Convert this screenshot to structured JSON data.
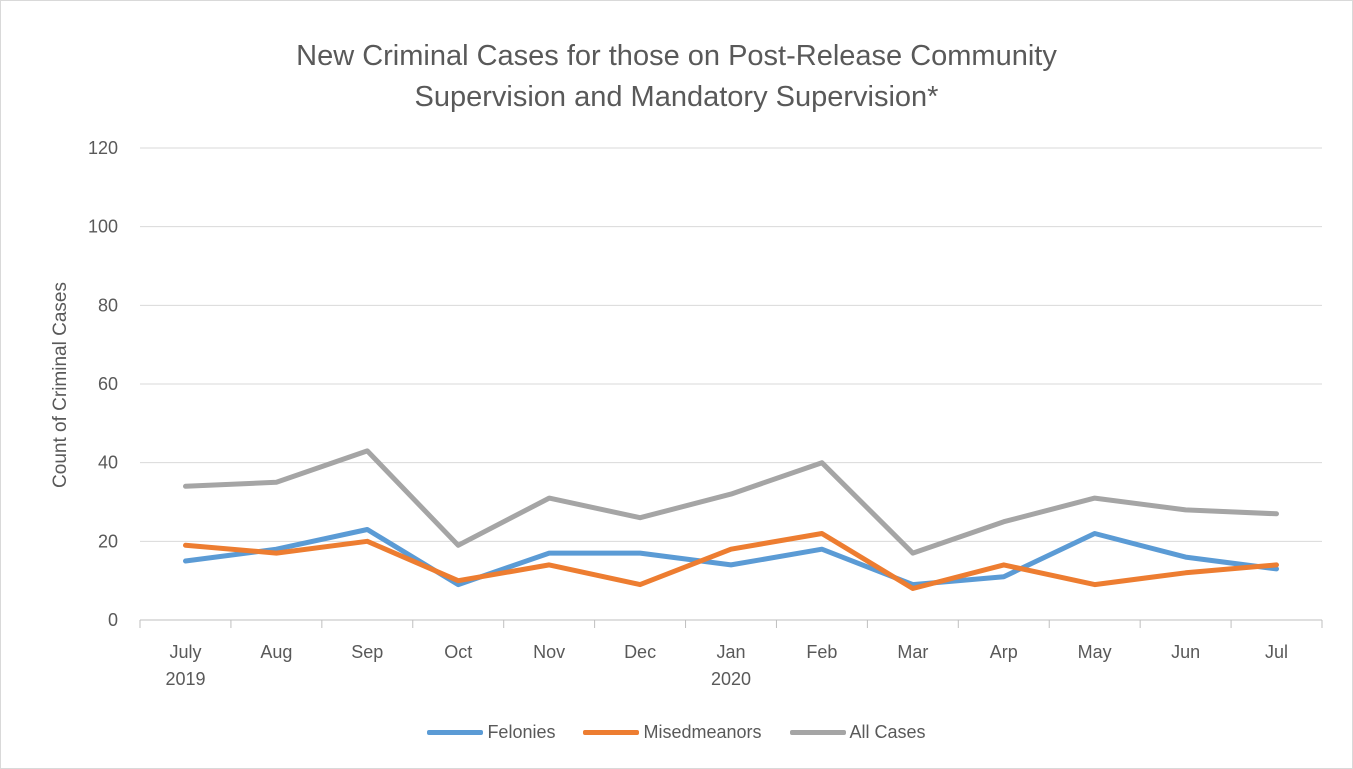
{
  "chart_data": {
    "type": "line",
    "title_lines": [
      "New Criminal Cases for those on Post-Release Community",
      "Supervision and Mandatory Supervision*"
    ],
    "xlabel": "",
    "ylabel": "Count of Criminal Cases",
    "ylim": [
      0,
      120
    ],
    "yticks": [
      0,
      20,
      40,
      60,
      80,
      100,
      120
    ],
    "grid": true,
    "legend_position": "bottom",
    "categories": [
      [
        "July",
        "2019"
      ],
      [
        "Aug"
      ],
      [
        "Sep"
      ],
      [
        "Oct"
      ],
      [
        "Nov"
      ],
      [
        "Dec"
      ],
      [
        "Jan",
        "2020"
      ],
      [
        "Feb"
      ],
      [
        "Mar"
      ],
      [
        "Arp"
      ],
      [
        "May"
      ],
      [
        "Jun"
      ],
      [
        "Jul"
      ]
    ],
    "series": [
      {
        "name": "Felonies",
        "color": "#5b9bd5",
        "values": [
          15,
          18,
          23,
          9,
          17,
          17,
          14,
          18,
          9,
          11,
          22,
          16,
          13
        ]
      },
      {
        "name": "Misedmeanors",
        "color": "#ed7d31",
        "values": [
          19,
          17,
          20,
          10,
          14,
          9,
          18,
          22,
          8,
          14,
          9,
          12,
          14
        ]
      },
      {
        "name": "All Cases",
        "color": "#a5a5a5",
        "values": [
          34,
          35,
          43,
          19,
          31,
          26,
          32,
          40,
          17,
          25,
          31,
          28,
          27
        ]
      }
    ]
  }
}
